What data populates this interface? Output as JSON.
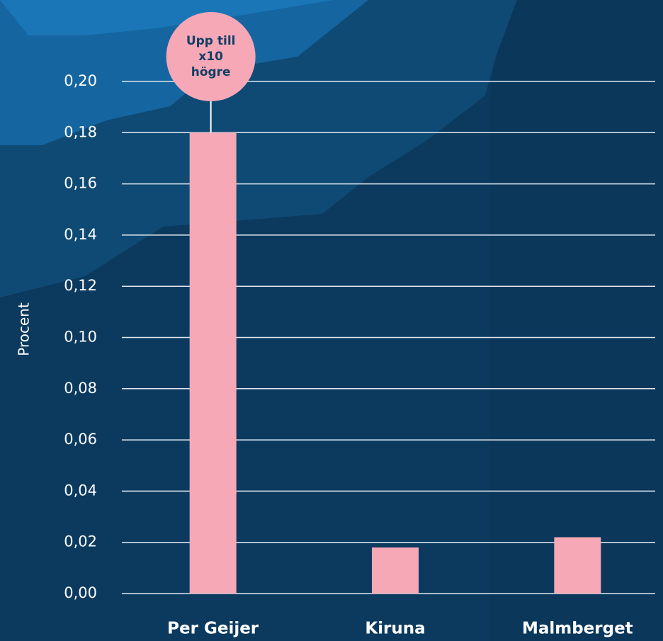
{
  "chart_data": {
    "type": "bar",
    "y_label": "Procent",
    "categories": [
      "Per Geijer",
      "Kiruna",
      "Malmberget"
    ],
    "values": [
      0.18,
      0.018,
      0.022
    ],
    "color": "#f7a8b6",
    "ylim": [
      0,
      0.2
    ],
    "yticks": [
      {
        "value": 0,
        "label": "0,00"
      },
      {
        "value": 0.02,
        "label": "0,02"
      },
      {
        "value": 0.04,
        "label": "0,04"
      },
      {
        "value": 0.06,
        "label": "0,06"
      },
      {
        "value": 0.08,
        "label": "0,08"
      },
      {
        "value": 0.1,
        "label": "0,10"
      },
      {
        "value": 0.12,
        "label": "0,12"
      },
      {
        "value": 0.14,
        "label": "0,14"
      },
      {
        "value": 0.16,
        "label": "0,16"
      },
      {
        "value": 0.18,
        "label": "0,18"
      },
      {
        "value": 0.2,
        "label": "0,20"
      }
    ],
    "grid": true,
    "annotation": [
      "Upp till",
      "x10",
      "högre"
    ]
  }
}
